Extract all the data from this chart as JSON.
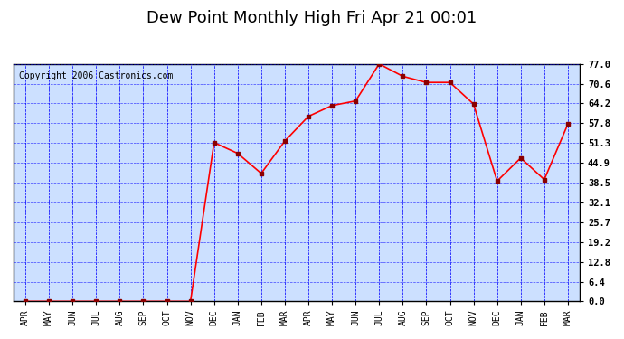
{
  "title": "Dew Point Monthly High Fri Apr 21 00:01",
  "copyright": "Copyright 2006 Castronics.com",
  "x_labels": [
    "APR",
    "MAY",
    "JUN",
    "JUL",
    "AUG",
    "SEP",
    "OCT",
    "NOV",
    "DEC",
    "JAN",
    "FEB",
    "MAR",
    "APR",
    "MAY",
    "JUN",
    "JUL",
    "AUG",
    "SEP",
    "OCT",
    "NOV",
    "DEC",
    "JAN",
    "FEB",
    "MAR"
  ],
  "y_values": [
    0.0,
    0.0,
    0.0,
    0.0,
    0.0,
    0.0,
    0.0,
    0.0,
    51.5,
    48.0,
    41.5,
    52.0,
    60.0,
    63.5,
    65.0,
    77.0,
    73.0,
    71.0,
    71.0,
    64.0,
    39.0,
    46.5,
    39.5,
    57.5
  ],
  "y_ticks": [
    0.0,
    6.4,
    12.8,
    19.2,
    25.7,
    32.1,
    38.5,
    44.9,
    51.3,
    57.8,
    64.2,
    70.6,
    77.0
  ],
  "y_min": 0.0,
  "y_max": 77.0,
  "line_color": "red",
  "marker_color": "darkred",
  "bg_color": "#cce0ff",
  "plot_bg_color": "#cce0ff",
  "outer_bg_color": "white",
  "grid_color": "blue",
  "title_fontsize": 13,
  "copyright_fontsize": 7
}
